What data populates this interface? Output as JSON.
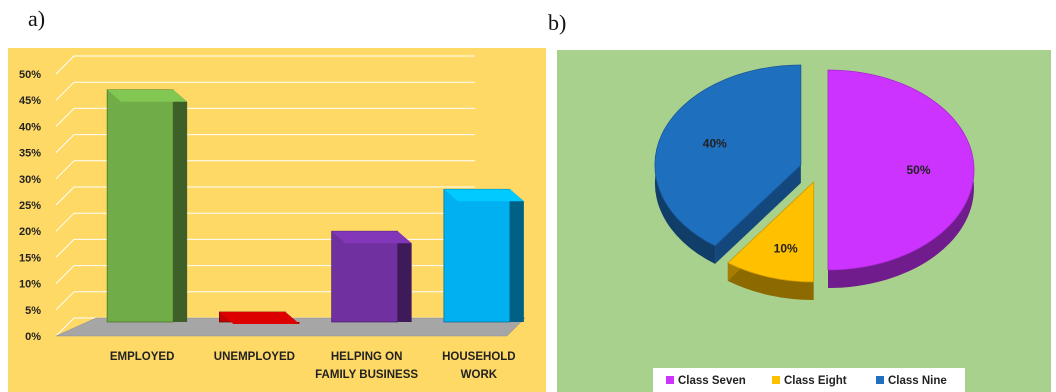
{
  "panels": {
    "a_label": "a)",
    "b_label": "b)"
  },
  "chart_data": [
    {
      "type": "bar",
      "title": "",
      "categories": [
        "EMPLOYED",
        "UNEMPLOYED",
        "HELPING ON FAMILY BUSINESS",
        "HOUSEHOLD WORK"
      ],
      "category_lines": [
        [
          "EMPLOYED"
        ],
        [
          "UNEMPLOYED"
        ],
        [
          "HELPING ON",
          "FAMILY BUSINESS"
        ],
        [
          "HOUSEHOLD",
          "WORK"
        ]
      ],
      "values": [
        47,
        2,
        20,
        28
      ],
      "value_unit": "%",
      "colors": [
        "#70ad47",
        "#c00000",
        "#7030a0",
        "#00b0f0"
      ],
      "ylim": [
        0,
        50
      ],
      "yticks": [
        "0%",
        "5%",
        "10%",
        "15%",
        "20%",
        "25%",
        "30%",
        "35%",
        "40%",
        "45%",
        "50%"
      ],
      "grid": true,
      "style": "3d-column",
      "background": "#ffd966"
    },
    {
      "type": "pie",
      "title": "",
      "labels": [
        "Class Seven",
        "Class Eight",
        "Class Nine"
      ],
      "values": [
        50,
        10,
        40
      ],
      "value_labels": [
        "50%",
        "10%",
        "40%"
      ],
      "colors": [
        "#cc33ff",
        "#ffc000",
        "#1f6fbf"
      ],
      "style": "3d-exploded",
      "legend_position": "bottom",
      "background": "#a9d18e"
    }
  ]
}
